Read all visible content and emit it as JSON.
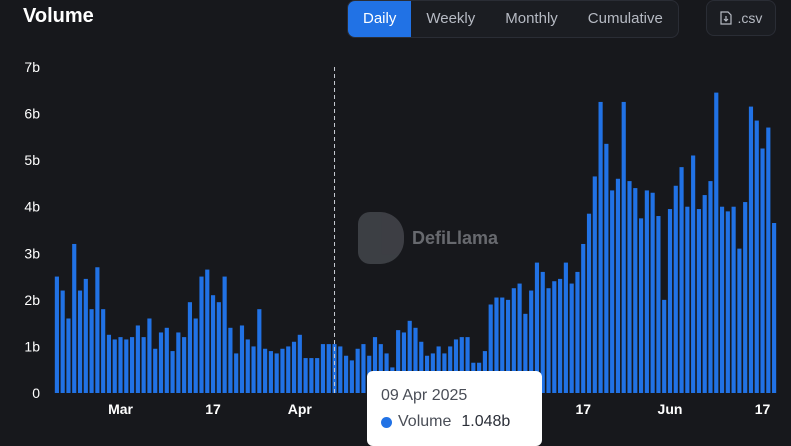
{
  "header": {
    "title": "Volume",
    "tabs": [
      "Daily",
      "Weekly",
      "Monthly",
      "Cumulative"
    ],
    "active_tab": "Daily",
    "csv_label": ".csv"
  },
  "watermark": {
    "text": "DefiLlama"
  },
  "tooltip": {
    "date": "09 Apr 2025",
    "series": "Volume",
    "value": "1.048b"
  },
  "colors": {
    "bar": "#2172e5",
    "accent": "#2172e5",
    "background": "#17181c"
  },
  "chart_data": {
    "type": "bar",
    "title": "Volume",
    "ylabel": "",
    "xlabel": "",
    "ylim": [
      0,
      7
    ],
    "y_unit": "b",
    "y_ticks": [
      "0",
      "1b",
      "2b",
      "3b",
      "4b",
      "5b",
      "6b",
      "7b"
    ],
    "x_tick_labels": [
      {
        "label": "Mar",
        "index": 11
      },
      {
        "label": "17",
        "index": 27
      },
      {
        "label": "Apr",
        "index": 42
      },
      {
        "label": "17",
        "index": 91
      },
      {
        "label": "Jun",
        "index": 106
      },
      {
        "label": "17",
        "index": 122
      }
    ],
    "highlight_index": 48,
    "values": [
      2.5,
      2.2,
      1.6,
      3.2,
      2.2,
      2.45,
      1.8,
      2.7,
      1.8,
      1.25,
      1.15,
      1.2,
      1.15,
      1.2,
      1.45,
      1.2,
      1.6,
      0.95,
      1.3,
      1.4,
      0.9,
      1.3,
      1.2,
      1.95,
      1.6,
      2.5,
      2.65,
      2.1,
      1.95,
      2.5,
      1.4,
      0.85,
      1.45,
      1.15,
      1.0,
      1.8,
      0.95,
      0.9,
      0.85,
      0.95,
      1.0,
      1.1,
      1.25,
      0.75,
      0.75,
      0.75,
      1.05,
      1.05,
      1.05,
      1.0,
      0.8,
      0.7,
      0.95,
      1.05,
      0.8,
      1.2,
      1.05,
      0.85,
      0.55,
      1.35,
      1.3,
      1.55,
      1.4,
      1.1,
      0.8,
      0.85,
      1.0,
      0.85,
      1.0,
      1.15,
      1.2,
      1.2,
      0.65,
      0.65,
      0.9,
      1.9,
      2.05,
      2.05,
      2.0,
      2.25,
      2.35,
      1.7,
      2.2,
      2.8,
      2.6,
      2.25,
      2.4,
      2.45,
      2.8,
      2.35,
      2.6,
      3.2,
      3.85,
      4.65,
      6.25,
      5.35,
      4.35,
      4.6,
      6.25,
      4.55,
      4.4,
      3.75,
      4.35,
      4.3,
      3.8,
      2.0,
      3.95,
      4.45,
      4.85,
      4.0,
      5.1,
      3.95,
      4.25,
      4.55,
      6.45,
      4.0,
      3.9,
      4.0,
      3.1,
      4.1,
      6.15,
      5.85,
      5.25,
      5.7,
      3.65
    ]
  }
}
